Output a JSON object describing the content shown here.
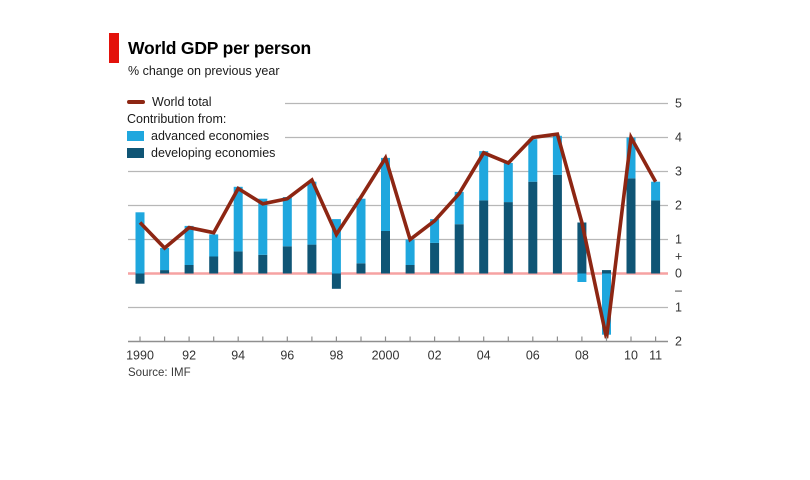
{
  "header": {
    "title": "World GDP per person",
    "subtitle": "% change on previous year"
  },
  "legend": {
    "world_total": "World total",
    "contribution_heading": "Contribution from:",
    "advanced": "advanced economies",
    "developing": "developing economies"
  },
  "source": "Source: IMF",
  "colors": {
    "tag_red": "#E3120B",
    "advanced_blue": "#1FA7DE",
    "developing_teal": "#0F5575",
    "world_line": "#8D2613",
    "zero_line": "#F6A2A2",
    "grid": "#B7B7B7",
    "axis": "#8F8F8F",
    "axis_text": "#333333"
  },
  "chart_data": {
    "type": "bar",
    "stacked": true,
    "overlay": "line",
    "title": "World GDP per person",
    "subtitle": "% change on previous year",
    "source": "Source: IMF",
    "ylabel": "% change on previous year",
    "ylim": [
      -2,
      5
    ],
    "grid": true,
    "legend_position": "top-left",
    "categories": [
      "1990",
      "1991",
      "1992",
      "1993",
      "1994",
      "1995",
      "1996",
      "1997",
      "1998",
      "1999",
      "2000",
      "2001",
      "2002",
      "2003",
      "2004",
      "2005",
      "2006",
      "2007",
      "2008",
      "2009",
      "2010",
      "2011"
    ],
    "series": [
      {
        "name": "advanced economies",
        "color": "#1FA7DE",
        "values": [
          1.8,
          0.65,
          1.15,
          0.65,
          1.9,
          1.65,
          1.45,
          1.85,
          1.6,
          1.9,
          2.15,
          0.75,
          0.7,
          0.95,
          1.45,
          1.15,
          1.25,
          1.15,
          -0.25,
          -1.8,
          1.2,
          0.55
        ]
      },
      {
        "name": "developing economies",
        "color": "#0F5575",
        "values": [
          -0.3,
          0.1,
          0.25,
          0.5,
          0.65,
          0.55,
          0.8,
          0.85,
          -0.45,
          0.3,
          1.25,
          0.25,
          0.9,
          1.45,
          2.15,
          2.1,
          2.7,
          2.9,
          1.5,
          0.1,
          2.8,
          2.15
        ]
      }
    ],
    "line_series": {
      "name": "World total",
      "color": "#8D2613",
      "values": [
        1.5,
        0.75,
        1.35,
        1.2,
        2.5,
        2.05,
        2.2,
        2.75,
        1.15,
        2.25,
        3.4,
        1.0,
        1.55,
        2.35,
        3.55,
        3.25,
        4.0,
        4.1,
        1.5,
        -1.9,
        4.0,
        2.7
      ]
    },
    "y_ticks": [
      {
        "v": 5,
        "label": "5"
      },
      {
        "v": 4,
        "label": "4"
      },
      {
        "v": 3,
        "label": "3"
      },
      {
        "v": 2,
        "label": "2"
      },
      {
        "v": 1,
        "label": "1"
      },
      {
        "v": 0.5,
        "label": "+"
      },
      {
        "v": 0,
        "label": "0"
      },
      {
        "v": -0.5,
        "label": "–"
      },
      {
        "v": -1,
        "label": "1"
      },
      {
        "v": -2,
        "label": "2"
      }
    ],
    "gridline_values": [
      5,
      4,
      3,
      2,
      1,
      -1
    ],
    "x_ticks": [
      {
        "i": 0,
        "label": "1990"
      },
      {
        "i": 2,
        "label": "92"
      },
      {
        "i": 4,
        "label": "94"
      },
      {
        "i": 6,
        "label": "96"
      },
      {
        "i": 8,
        "label": "98"
      },
      {
        "i": 10,
        "label": "2000"
      },
      {
        "i": 12,
        "label": "02"
      },
      {
        "i": 14,
        "label": "04"
      },
      {
        "i": 16,
        "label": "06"
      },
      {
        "i": 18,
        "label": "08"
      },
      {
        "i": 20,
        "label": "10"
      },
      {
        "i": 21,
        "label": "11"
      }
    ]
  }
}
